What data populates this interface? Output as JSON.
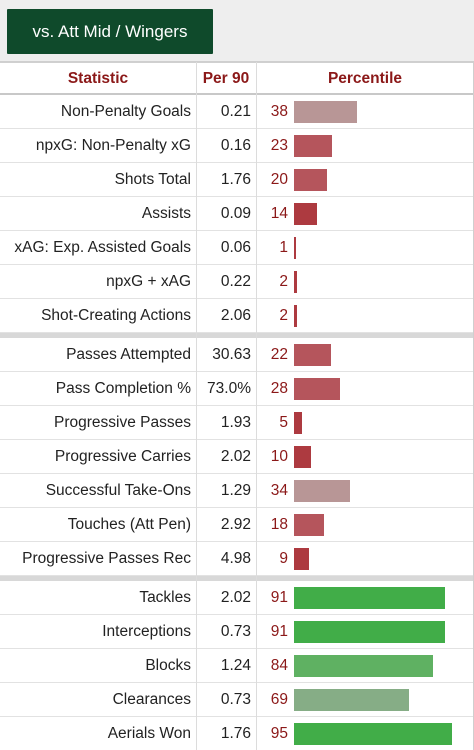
{
  "tab": {
    "label": "vs. Att Mid / Wingers"
  },
  "columns": {
    "statistic": "Statistic",
    "per90": "Per 90",
    "percentile": "Percentile"
  },
  "groups": [
    {
      "rows": [
        {
          "stat": "Non-Penalty Goals",
          "per90": "0.21",
          "pct": 38
        },
        {
          "stat": "npxG: Non-Penalty xG",
          "per90": "0.16",
          "pct": 23
        },
        {
          "stat": "Shots Total",
          "per90": "1.76",
          "pct": 20
        },
        {
          "stat": "Assists",
          "per90": "0.09",
          "pct": 14
        },
        {
          "stat": "xAG: Exp. Assisted Goals",
          "per90": "0.06",
          "pct": 1
        },
        {
          "stat": "npxG + xAG",
          "per90": "0.22",
          "pct": 2
        },
        {
          "stat": "Shot-Creating Actions",
          "per90": "2.06",
          "pct": 2
        }
      ]
    },
    {
      "rows": [
        {
          "stat": "Passes Attempted",
          "per90": "30.63",
          "pct": 22
        },
        {
          "stat": "Pass Completion %",
          "per90": "73.0%",
          "pct": 28
        },
        {
          "stat": "Progressive Passes",
          "per90": "1.93",
          "pct": 5
        },
        {
          "stat": "Progressive Carries",
          "per90": "2.02",
          "pct": 10
        },
        {
          "stat": "Successful Take-Ons",
          "per90": "1.29",
          "pct": 34
        },
        {
          "stat": "Touches (Att Pen)",
          "per90": "2.92",
          "pct": 18
        },
        {
          "stat": "Progressive Passes Rec",
          "per90": "4.98",
          "pct": 9
        }
      ]
    },
    {
      "rows": [
        {
          "stat": "Tackles",
          "per90": "2.02",
          "pct": 91
        },
        {
          "stat": "Interceptions",
          "per90": "0.73",
          "pct": 91
        },
        {
          "stat": "Blocks",
          "per90": "1.24",
          "pct": 84
        },
        {
          "stat": "Clearances",
          "per90": "0.73",
          "pct": 69
        },
        {
          "stat": "Aerials Won",
          "per90": "1.76",
          "pct": 95
        }
      ]
    }
  ],
  "colors": {
    "tab_bg": "#0f4a2b",
    "header_text": "#8b1818",
    "bar_low_light": "#b89696",
    "bar_low": "#b5555c",
    "bar_very_low": "#ad3a40",
    "bar_high": "#41ad48",
    "bar_mid_high": "#5fb162",
    "bar_mid": "#86ad86"
  }
}
